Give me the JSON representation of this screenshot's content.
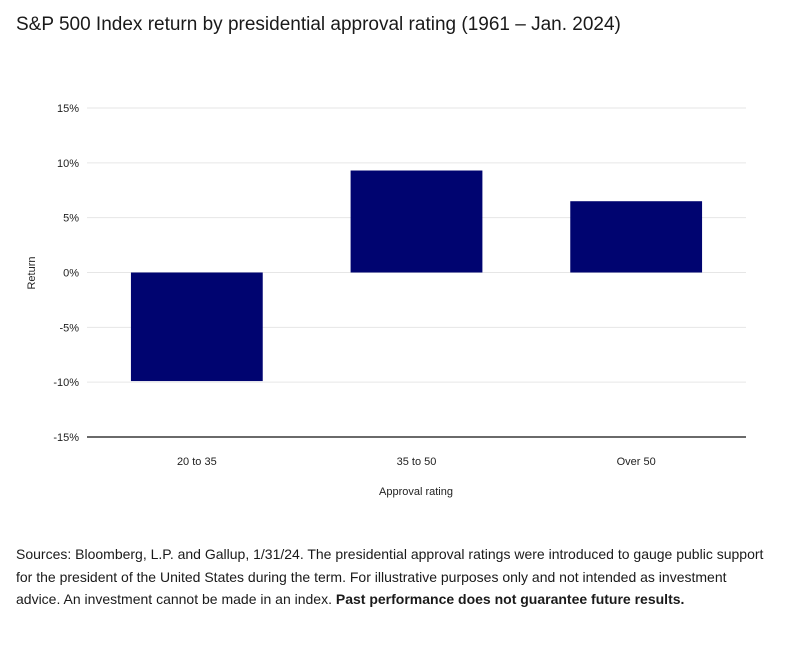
{
  "title": "S&P 500 Index return by presidential approval rating (1961 – Jan. 2024)",
  "colors": {
    "bar": "#000470",
    "grid": "#e6e6e6",
    "baseline": "#111111"
  },
  "chart_data": {
    "type": "bar",
    "title": "S&P 500 Index return by presidential approval rating (1961 – Jan. 2024)",
    "xlabel": "Approval rating",
    "ylabel": "Return",
    "categories": [
      "20 to 35",
      "35 to 50",
      "Over 50"
    ],
    "values": [
      -9.9,
      9.3,
      6.5
    ],
    "ylim": [
      -15,
      15
    ],
    "yticks": [
      15,
      10,
      5,
      0,
      -5,
      -10,
      -15
    ],
    "ytick_labels": [
      "15%",
      "10%",
      "5%",
      "0%",
      "-5%",
      "-10%",
      "-15%"
    ],
    "grid": true,
    "legend": "none"
  },
  "source": {
    "text": "Sources: Bloomberg, L.P. and Gallup, 1/31/24. The presidential approval ratings were introduced to gauge public support for the president of the United States during the term. For illustrative purposes only and not intended as investment advice. An investment cannot be made in an index. ",
    "bold": "Past performance does not guarantee future results."
  }
}
